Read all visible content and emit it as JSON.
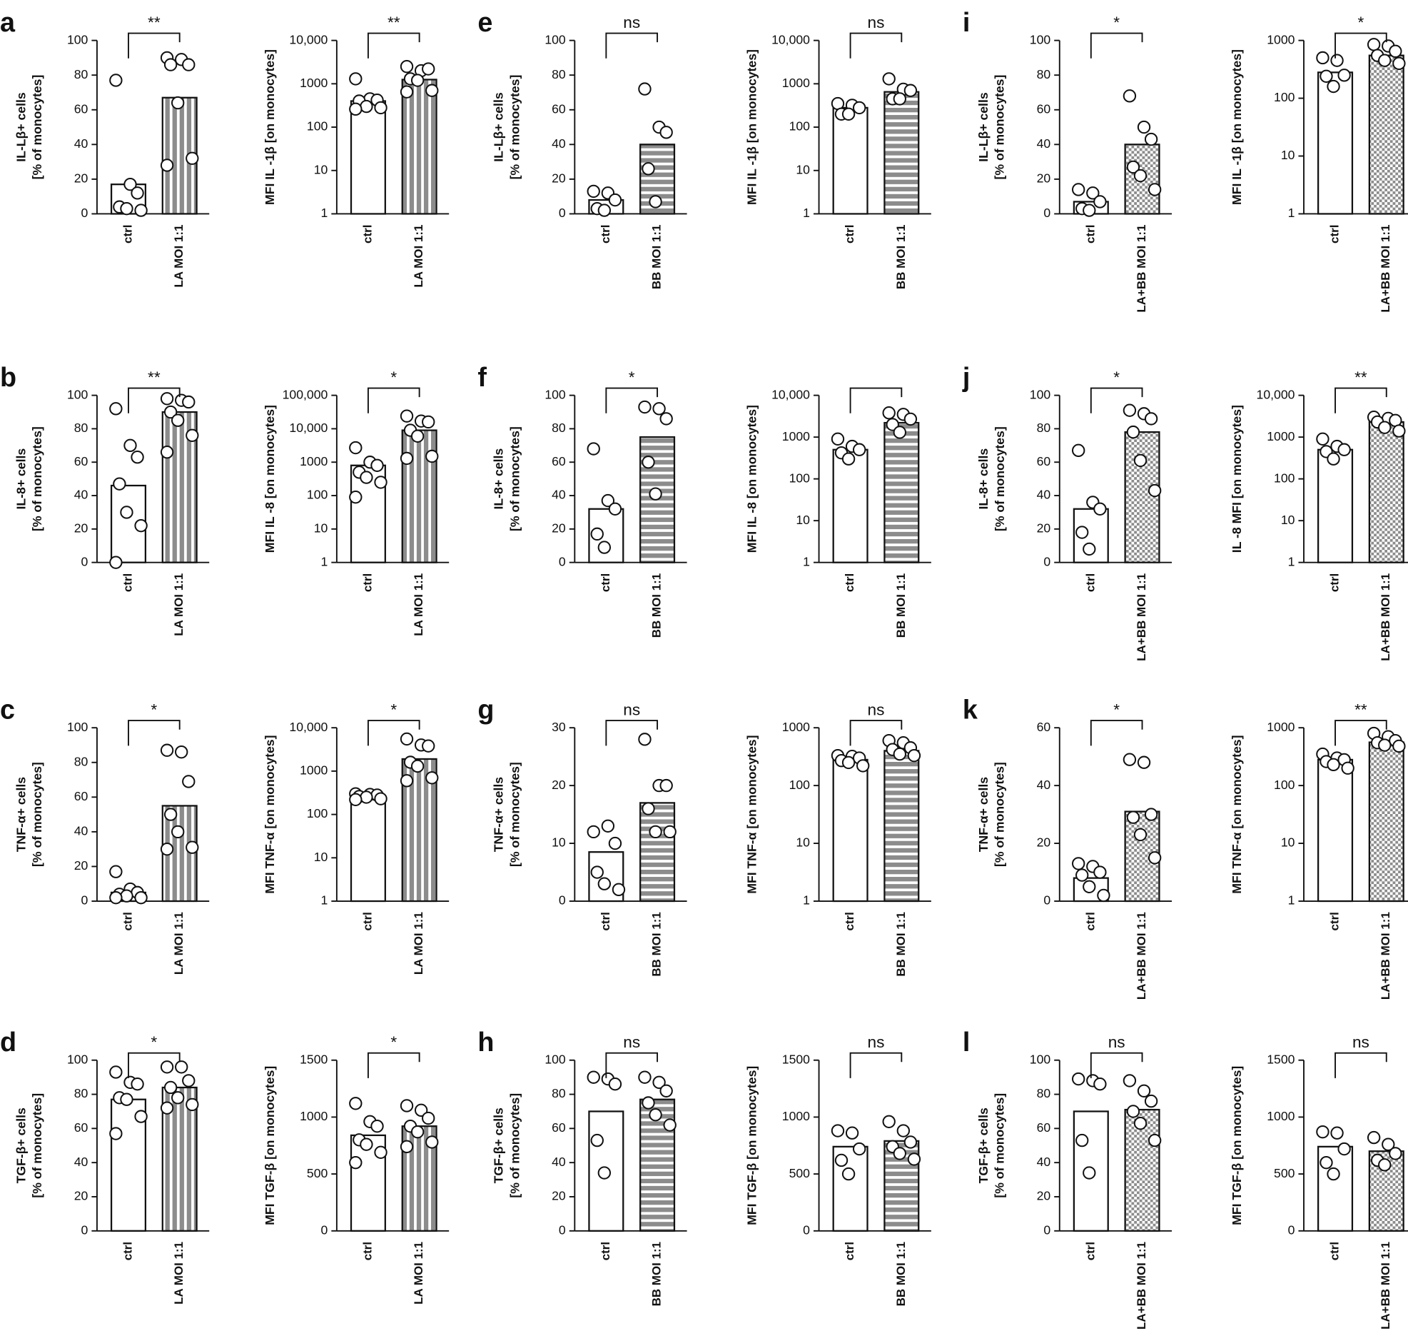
{
  "chart_data": [
    {
      "type": "bar",
      "panel": "a",
      "ylabel": [
        "IL-Lβ+ cells",
        "[% of monocytes]"
      ],
      "categories": [
        "ctrl",
        "LA MOI 1:1"
      ],
      "values": [
        17,
        67
      ],
      "points": [
        [
          77,
          17,
          12,
          4,
          3,
          2
        ],
        [
          90,
          89,
          86,
          86,
          64,
          32,
          28
        ]
      ],
      "sig": "**",
      "bracket": true,
      "ylim": [
        0,
        100
      ],
      "yticks": [
        0,
        20,
        40,
        60,
        80,
        100
      ],
      "log": false,
      "pattern": "vstripes",
      "color": "#8c8c8c"
    },
    {
      "type": "bar",
      "ylabel": [
        "MFI IL -1β [on monocytes]"
      ],
      "categories": [
        "ctrl",
        "LA MOI 1:1"
      ],
      "values": [
        400,
        1250
      ],
      "points": [
        [
          1300,
          450,
          420,
          400,
          300,
          280,
          260
        ],
        [
          2500,
          2000,
          2200,
          1300,
          1200,
          700,
          650
        ]
      ],
      "sig": "**",
      "bracket": true,
      "ylim": [
        1,
        10000
      ],
      "yticks": [
        1,
        10,
        100,
        1000,
        {
          "value": 10000,
          "label": "10,000"
        }
      ],
      "log": true,
      "pattern": "vstripes",
      "color": "#8c8c8c"
    },
    {
      "type": "bar",
      "panel": "b",
      "ylabel": [
        "IL-8+ cells",
        "[% of monocytes]"
      ],
      "categories": [
        "ctrl",
        "LA MOI 1:1"
      ],
      "values": [
        46,
        90
      ],
      "points": [
        [
          92,
          70,
          63,
          47,
          30,
          22,
          0
        ],
        [
          98,
          97,
          96,
          90,
          85,
          76,
          66
        ]
      ],
      "sig": "**",
      "bracket": true,
      "ylim": [
        0,
        100
      ],
      "yticks": [
        0,
        20,
        40,
        60,
        80,
        100
      ],
      "log": false,
      "pattern": "vstripes",
      "color": "#8c8c8c"
    },
    {
      "type": "bar",
      "ylabel": [
        "MFI IL -8 [on monocytes]"
      ],
      "categories": [
        "ctrl",
        "LA MOI 1:1"
      ],
      "values": [
        800,
        9000
      ],
      "points": [
        [
          2700,
          1000,
          800,
          500,
          350,
          250,
          90
        ],
        [
          24000,
          17000,
          16000,
          9000,
          6000,
          1500,
          1300
        ]
      ],
      "sig": "*",
      "bracket": true,
      "ylim": [
        1,
        100000
      ],
      "yticks": [
        1,
        10,
        100,
        1000,
        {
          "value": 10000,
          "label": "10,000"
        },
        {
          "value": 100000,
          "label": "100,000"
        }
      ],
      "log": true,
      "pattern": "vstripes",
      "color": "#8c8c8c"
    },
    {
      "type": "bar",
      "panel": "c",
      "ylabel": [
        "TNF-α+ cells",
        "[% of monocytes]"
      ],
      "categories": [
        "ctrl",
        "LA MOI 1:1"
      ],
      "values": [
        5,
        55
      ],
      "points": [
        [
          17,
          7,
          5,
          4,
          3,
          2,
          2
        ],
        [
          87,
          86,
          69,
          50,
          40,
          31,
          30
        ]
      ],
      "sig": "*",
      "bracket": true,
      "ylim": [
        0,
        100
      ],
      "yticks": [
        0,
        20,
        40,
        60,
        80,
        100
      ],
      "log": false,
      "pattern": "vstripes",
      "color": "#8c8c8c"
    },
    {
      "type": "bar",
      "ylabel": [
        "MFI TNF-α [on monocytes]"
      ],
      "categories": [
        "ctrl",
        "LA MOI 1:1"
      ],
      "values": [
        250,
        1900
      ],
      "points": [
        [
          300,
          290,
          280,
          260,
          250,
          230,
          220
        ],
        [
          5500,
          4000,
          3800,
          1600,
          1300,
          700,
          600
        ]
      ],
      "sig": "*",
      "bracket": true,
      "ylim": [
        1,
        10000
      ],
      "yticks": [
        1,
        10,
        100,
        1000,
        {
          "value": 10000,
          "label": "10,000"
        }
      ],
      "log": true,
      "pattern": "vstripes",
      "color": "#8c8c8c"
    },
    {
      "type": "bar",
      "panel": "d",
      "ylabel": [
        "TGF-β+ cells",
        "[% of monocytes]"
      ],
      "categories": [
        "ctrl",
        "LA MOI 1:1"
      ],
      "values": [
        77,
        84
      ],
      "points": [
        [
          93,
          87,
          86,
          78,
          77,
          67,
          57
        ],
        [
          96,
          96,
          88,
          84,
          78,
          74,
          72
        ]
      ],
      "sig": "*",
      "bracket": true,
      "ylim": [
        0,
        100
      ],
      "yticks": [
        0,
        20,
        40,
        60,
        80,
        100
      ],
      "log": false,
      "pattern": "vstripes",
      "color": "#8c8c8c"
    },
    {
      "type": "bar",
      "ylabel": [
        "MFI TGF-β [on monocytes]"
      ],
      "categories": [
        "ctrl",
        "LA MOI 1:1"
      ],
      "values": [
        840,
        920
      ],
      "points": [
        [
          1120,
          960,
          920,
          800,
          760,
          690,
          600
        ],
        [
          1100,
          1060,
          990,
          920,
          870,
          780,
          740
        ]
      ],
      "sig": "*",
      "bracket": true,
      "ylim": [
        0,
        1500
      ],
      "yticks": [
        0,
        500,
        1000,
        1500
      ],
      "log": false,
      "pattern": "vstripes",
      "color": "#8c8c8c"
    },
    {
      "type": "bar",
      "panel": "e",
      "ylabel": [
        "IL-Lβ+ cells",
        "[% of monocytes]"
      ],
      "categories": [
        "ctrl",
        "BB MOI 1:1"
      ],
      "values": [
        8,
        40
      ],
      "points": [
        [
          13,
          12,
          8,
          3,
          2
        ],
        [
          72,
          50,
          47,
          26,
          7
        ]
      ],
      "sig": "ns",
      "bracket": true,
      "ylim": [
        0,
        100
      ],
      "yticks": [
        0,
        20,
        40,
        60,
        80,
        100
      ],
      "log": false,
      "pattern": "hstripes",
      "color": "#8c8c8c"
    },
    {
      "type": "bar",
      "ylabel": [
        "MFI IL -1β [on monocytes]"
      ],
      "categories": [
        "ctrl",
        "BB MOI 1:1"
      ],
      "values": [
        280,
        650
      ],
      "points": [
        [
          350,
          320,
          280,
          200,
          200
        ],
        [
          1300,
          750,
          700,
          450,
          450
        ]
      ],
      "sig": "ns",
      "bracket": true,
      "ylim": [
        1,
        10000
      ],
      "yticks": [
        1,
        10,
        100,
        1000,
        {
          "value": 10000,
          "label": "10,000"
        }
      ],
      "log": true,
      "pattern": "hstripes",
      "color": "#8c8c8c"
    },
    {
      "type": "bar",
      "panel": "f",
      "ylabel": [
        "IL-8+ cells",
        "[% of monocytes]"
      ],
      "categories": [
        "ctrl",
        "BB MOI 1:1"
      ],
      "values": [
        32,
        75
      ],
      "points": [
        [
          68,
          37,
          32,
          17,
          9
        ],
        [
          93,
          92,
          86,
          60,
          41
        ]
      ],
      "sig": "*",
      "bracket": true,
      "ylim": [
        0,
        100
      ],
      "yticks": [
        0,
        20,
        40,
        60,
        80,
        100
      ],
      "log": false,
      "pattern": "hstripes",
      "color": "#8c8c8c"
    },
    {
      "type": "bar",
      "ylabel": [
        "MFI IL -8 [on monocytes]"
      ],
      "categories": [
        "ctrl",
        "BB MOI 1:1"
      ],
      "values": [
        500,
        2200
      ],
      "points": [
        [
          900,
          600,
          500,
          420,
          300
        ],
        [
          3800,
          3500,
          2700,
          2000,
          1300
        ]
      ],
      "bracket": true,
      "ylim": [
        1,
        10000
      ],
      "yticks": [
        1,
        10,
        100,
        1000,
        {
          "value": 10000,
          "label": "10,000"
        }
      ],
      "log": true,
      "pattern": "hstripes",
      "color": "#8c8c8c"
    },
    {
      "type": "bar",
      "panel": "g",
      "ylabel": [
        "TNF-α+ cells",
        "[% of monocytes]"
      ],
      "categories": [
        "ctrl",
        "BB MOI 1:1"
      ],
      "values": [
        8.5,
        17
      ],
      "points": [
        [
          12,
          13,
          10,
          5,
          3,
          2
        ],
        [
          28,
          20,
          20,
          16,
          12,
          12
        ]
      ],
      "sig": "ns",
      "bracket": true,
      "ylim": [
        0,
        30
      ],
      "yticks": [
        0,
        10,
        20,
        30
      ],
      "log": false,
      "pattern": "hstripes",
      "color": "#8c8c8c"
    },
    {
      "type": "bar",
      "ylabel": [
        "MFI TNF-α [on monocytes]"
      ],
      "categories": [
        "ctrl",
        "BB MOI 1:1"
      ],
      "values": [
        280,
        400
      ],
      "points": [
        [
          330,
          320,
          300,
          270,
          250,
          220
        ],
        [
          600,
          550,
          450,
          420,
          350,
          330
        ]
      ],
      "sig": "ns",
      "bracket": true,
      "ylim": [
        1,
        1000
      ],
      "yticks": [
        1,
        10,
        100,
        1000
      ],
      "log": true,
      "pattern": "hstripes",
      "color": "#8c8c8c"
    },
    {
      "type": "bar",
      "panel": "h",
      "ylabel": [
        "TGF-β+ cells",
        "[% of monocytes]"
      ],
      "categories": [
        "ctrl",
        "BB MOI 1:1"
      ],
      "values": [
        70,
        77
      ],
      "points": [
        [
          90,
          89,
          86,
          53,
          34
        ],
        [
          90,
          87,
          82,
          75,
          68,
          62
        ]
      ],
      "sig": "ns",
      "bracket": true,
      "ylim": [
        0,
        100
      ],
      "yticks": [
        0,
        20,
        40,
        60,
        80,
        100
      ],
      "log": false,
      "pattern": "hstripes",
      "color": "#8c8c8c"
    },
    {
      "type": "bar",
      "ylabel": [
        "MFI TGF-β [on monocytes]"
      ],
      "categories": [
        "ctrl",
        "BB MOI 1:1"
      ],
      "values": [
        740,
        790
      ],
      "points": [
        [
          880,
          860,
          720,
          620,
          500
        ],
        [
          960,
          880,
          780,
          740,
          680,
          630
        ]
      ],
      "sig": "ns",
      "bracket": true,
      "ylim": [
        0,
        1500
      ],
      "yticks": [
        0,
        500,
        1000,
        1500
      ],
      "log": false,
      "pattern": "hstripes",
      "color": "#8c8c8c"
    },
    {
      "type": "bar",
      "panel": "i",
      "ylabel": [
        "IL-Lβ+ cells",
        "[% of monocytes]"
      ],
      "categories": [
        "ctrl",
        "LA+BB MOI 1:1"
      ],
      "values": [
        7,
        40
      ],
      "points": [
        [
          14,
          12,
          7,
          3,
          2
        ],
        [
          68,
          50,
          43,
          27,
          22,
          14
        ]
      ],
      "sig": "*",
      "bracket": true,
      "ylim": [
        0,
        100
      ],
      "yticks": [
        0,
        20,
        40,
        60,
        80,
        100
      ],
      "log": false,
      "pattern": "checker",
      "color": "#8c8c8c"
    },
    {
      "type": "bar",
      "ylabel": [
        "MFI IL -1β [on monocytes]"
      ],
      "categories": [
        "ctrl",
        "LA+BB MOI 1:1"
      ],
      "values": [
        280,
        550
      ],
      "points": [
        [
          500,
          450,
          250,
          240,
          160
        ],
        [
          850,
          800,
          650,
          550,
          450,
          400
        ]
      ],
      "sig": "*",
      "bracket": true,
      "ylim": [
        1,
        1000
      ],
      "yticks": [
        1,
        10,
        100,
        1000
      ],
      "log": true,
      "pattern": "checker",
      "color": "#8c8c8c"
    },
    {
      "type": "bar",
      "panel": "j",
      "ylabel": [
        "IL-8+ cells",
        "[% of monocytes]"
      ],
      "categories": [
        "ctrl",
        "LA+BB MOI 1:1"
      ],
      "values": [
        32,
        78
      ],
      "points": [
        [
          67,
          36,
          32,
          18,
          8
        ],
        [
          91,
          89,
          86,
          78,
          61,
          43
        ]
      ],
      "sig": "*",
      "bracket": true,
      "ylim": [
        0,
        100
      ],
      "yticks": [
        0,
        20,
        40,
        60,
        80,
        100
      ],
      "log": false,
      "pattern": "checker",
      "color": "#8c8c8c"
    },
    {
      "type": "bar",
      "ylabel": [
        "IL -8 MFI [on monocytes]"
      ],
      "categories": [
        "ctrl",
        "LA+BB MOI 1:1"
      ],
      "values": [
        500,
        2300
      ],
      "points": [
        [
          900,
          600,
          500,
          450,
          300
        ],
        [
          3000,
          2800,
          2500,
          2300,
          1700,
          1400
        ]
      ],
      "sig": "**",
      "bracket": true,
      "ylim": [
        1,
        10000
      ],
      "yticks": [
        1,
        10,
        100,
        1000,
        {
          "value": 10000,
          "label": "10,000"
        }
      ],
      "log": true,
      "pattern": "checker",
      "color": "#8c8c8c"
    },
    {
      "type": "bar",
      "panel": "k",
      "ylabel": [
        "TNF-α+ cells",
        "[% of monocytes]"
      ],
      "categories": [
        "ctrl",
        "LA+BB MOI 1:1"
      ],
      "values": [
        8,
        31
      ],
      "points": [
        [
          13,
          12,
          10,
          9,
          5,
          2
        ],
        [
          49,
          48,
          30,
          29,
          23,
          15
        ]
      ],
      "sig": "*",
      "bracket": true,
      "ylim": [
        0,
        60
      ],
      "yticks": [
        0,
        20,
        40,
        60
      ],
      "log": false,
      "pattern": "checker",
      "color": "#8c8c8c"
    },
    {
      "type": "bar",
      "ylabel": [
        "MFI TNF-α [on monocytes]"
      ],
      "categories": [
        "ctrl",
        "LA+BB MOI 1:1"
      ],
      "values": [
        280,
        560
      ],
      "points": [
        [
          350,
          300,
          280,
          260,
          230,
          200
        ],
        [
          800,
          700,
          600,
          550,
          500,
          480
        ]
      ],
      "sig": "**",
      "bracket": true,
      "ylim": [
        1,
        1000
      ],
      "yticks": [
        1,
        10,
        100,
        1000
      ],
      "log": true,
      "pattern": "checker",
      "color": "#8c8c8c"
    },
    {
      "type": "bar",
      "panel": "l",
      "ylabel": [
        "TGF-β+ cells",
        "[% of monocytes]"
      ],
      "categories": [
        "ctrl",
        "LA+BB MOI 1:1"
      ],
      "values": [
        70,
        71
      ],
      "points": [
        [
          89,
          88,
          86,
          53,
          34
        ],
        [
          88,
          82,
          76,
          70,
          63,
          53
        ]
      ],
      "sig": "ns",
      "bracket": true,
      "ylim": [
        0,
        100
      ],
      "yticks": [
        0,
        20,
        40,
        60,
        80,
        100
      ],
      "log": false,
      "pattern": "checker",
      "color": "#8c8c8c"
    },
    {
      "type": "bar",
      "ylabel": [
        "MFI TGF-β [on monocytes]"
      ],
      "categories": [
        "ctrl",
        "LA+BB MOI 1:1"
      ],
      "values": [
        740,
        700
      ],
      "points": [
        [
          870,
          860,
          720,
          600,
          500
        ],
        [
          820,
          760,
          680,
          620,
          580
        ]
      ],
      "sig": "ns",
      "bracket": true,
      "ylim": [
        0,
        1500
      ],
      "yticks": [
        0,
        500,
        1000,
        1500
      ],
      "log": false,
      "pattern": "checker",
      "color": "#8c8c8c"
    }
  ]
}
